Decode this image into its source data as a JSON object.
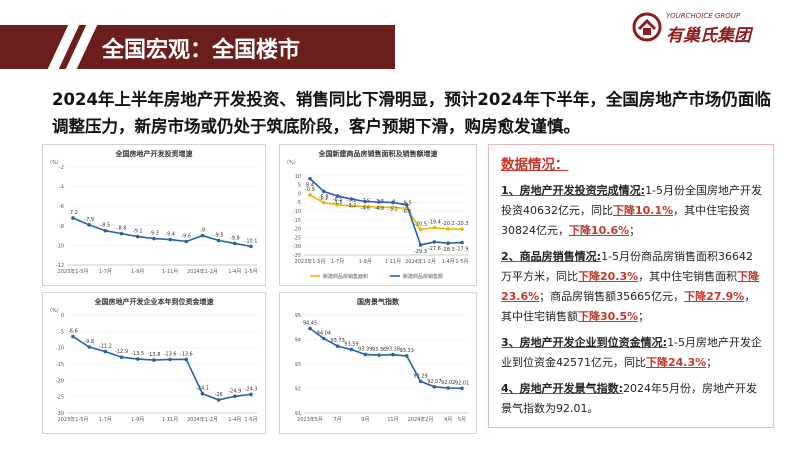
{
  "header": {
    "title": "全国宏观：全国楼市",
    "logo_sub": "YOURCHOICE GROUP",
    "logo_name": "有巢氏集团"
  },
  "headline": "2024年上半年房地产开发投资、销售同比下滑明显，预计2024年下半年，全国房地产市场仍面临调整压力，新房市场或仍处于筑底阶段，客户预期下滑，购房愈发谨慎。",
  "side": {
    "title": "数据情况：",
    "items": [
      {
        "lead": "1、房地产开发投资完成情况:",
        "t1": "1-5月份全国房地产开发投资40632亿元，同比",
        "h1": "下降10.1%",
        "t2": "，其中住宅投资30824亿元，",
        "h2": "下降10.6%",
        "t3": "；",
        "h3": "",
        "t4": "",
        "h4": "",
        "t5": ""
      },
      {
        "lead": "2、商品房销售情况:",
        "t1": "1-5月份商品房销售面积36642万平方米，同比",
        "h1": "下降20.3%",
        "t2": "，其中住宅销售面积",
        "h2": "下降23.6%",
        "t3": "；商品房销售额35665亿元，",
        "h3": "下降27.9%",
        "t4": "，其中住宅销售额",
        "h4": "下降30.5%",
        "t5": "；"
      },
      {
        "lead": "3、房地产开发企业到位资金情况:",
        "t1": "1-5月房地产开发企业到位资金42571亿元，同比",
        "h1": "下降24.3%",
        "t2": "；",
        "h2": "",
        "t3": "",
        "h3": "",
        "t4": "",
        "h4": "",
        "t5": ""
      },
      {
        "lead": "4、房地产开发景气指数:",
        "t1": "2024年5月份，房地产开发景气指数为92.01。",
        "h1": "",
        "t2": "",
        "h2": "",
        "t3": "",
        "h3": "",
        "t4": "",
        "h4": "",
        "t5": ""
      }
    ]
  },
  "colors": {
    "brand": "#6b1f1c",
    "accent": "#c0392b",
    "line": "#2e5fa3",
    "line2": "#f0b400"
  },
  "chart_data": [
    {
      "type": "line",
      "title": "全国房地产开发投资增速",
      "unit": "（%）",
      "ylim": [
        -12,
        -2
      ],
      "yticks": [
        -2,
        -4,
        -6,
        -8,
        -10,
        -12
      ],
      "x": [
        "2023年1-5月",
        "1-6月",
        "1-7月",
        "1-8月",
        "1-9月",
        "1-10月",
        "1-11月",
        "1-12月",
        "2024年1-2月",
        "1-3月",
        "1-4月",
        "1-5月"
      ],
      "series": [
        {
          "name": "",
          "values": [
            -7.2,
            -7.9,
            -8.5,
            -8.8,
            -9.1,
            -9.3,
            -9.4,
            -9.6,
            -9.0,
            -9.5,
            -9.8,
            -10.1
          ]
        }
      ]
    },
    {
      "type": "line",
      "title": "全国新建商品房销售面积及销售额增速",
      "unit": "（%）",
      "ylim": [
        -35,
        15
      ],
      "yticks": [
        10,
        5,
        0,
        -5,
        -10,
        -15,
        -20,
        -25,
        -30,
        -35
      ],
      "x": [
        "2023年1-5月",
        "1-6月",
        "1-7月",
        "1-8月",
        "1-9月",
        "1-10月",
        "1-11月",
        "1-12月",
        "2024年1-2月",
        "1-3月",
        "1-4月",
        "1-5月"
      ],
      "legend": [
        "新建商品房销售面积",
        "新建商品房销售额"
      ],
      "series": [
        {
          "name": "新建商品房销售面积",
          "values": [
            -0.9,
            -5.3,
            -6.5,
            -7.1,
            -7.5,
            -7.8,
            -8.0,
            -8.5,
            -20.5,
            -19.4,
            -20.2,
            -20.3
          ]
        },
        {
          "name": "新建商品房销售额",
          "values": [
            8.4,
            1.1,
            -1.5,
            -3.2,
            -4.6,
            -4.9,
            -5.2,
            -6.5,
            -29.3,
            -27.6,
            -28.3,
            -27.9
          ]
        }
      ]
    },
    {
      "type": "line",
      "title": "全国房地产开发企业本年到位资金增速",
      "unit": "（%）",
      "ylim": [
        -30,
        0
      ],
      "yticks": [
        0,
        -5,
        -10,
        -15,
        -20,
        -25,
        -30
      ],
      "x": [
        "2023年1-5月",
        "1-6月",
        "1-7月",
        "1-8月",
        "1-9月",
        "1-10月",
        "1-11月",
        "1-12月",
        "2024年1-2月",
        "1-3月",
        "1-4月",
        "1-5月"
      ],
      "series": [
        {
          "name": "",
          "values": [
            -6.6,
            -9.8,
            -11.2,
            -12.9,
            -13.5,
            -13.8,
            -13.6,
            -13.6,
            -24.1,
            -26.0,
            -24.9,
            -24.3
          ]
        }
      ]
    },
    {
      "type": "line",
      "title": "国房景气指数",
      "unit": "",
      "ylim": [
        91,
        95
      ],
      "yticks": [
        95,
        94,
        93,
        92,
        91
      ],
      "x": [
        "2023年5月",
        "6月",
        "7月",
        "8月",
        "9月",
        "10月",
        "11月",
        "12月",
        "2024年2月",
        "3月",
        "4月",
        "5月"
      ],
      "series": [
        {
          "name": "",
          "values": [
            94.45,
            94.04,
            93.73,
            93.59,
            93.39,
            93.36,
            93.38,
            93.33,
            92.29,
            92.07,
            92.02,
            92.01
          ]
        }
      ]
    }
  ]
}
